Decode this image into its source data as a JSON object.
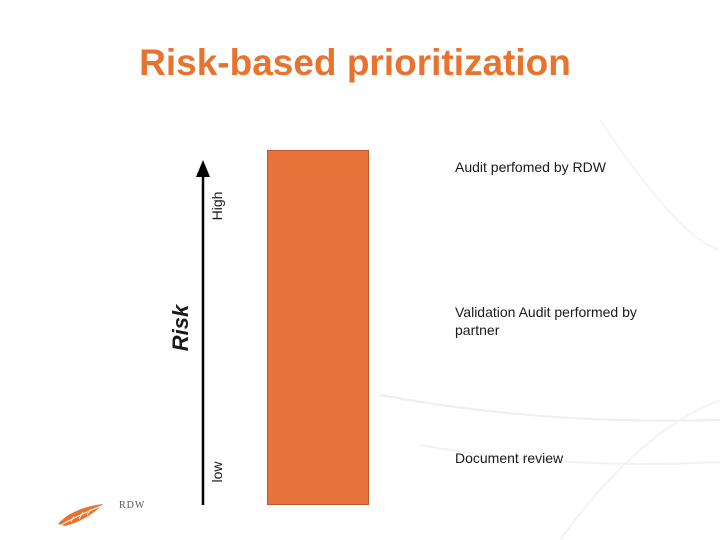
{
  "title": "Risk-based prioritization",
  "axis": {
    "label": "Risk",
    "high_label": "High",
    "low_label": "low"
  },
  "levels": [
    {
      "text": "Audit perfomed by RDW"
    },
    {
      "text": "Validation  Audit performed by partner"
    },
    {
      "text": "Document review"
    }
  ],
  "logo": {
    "text": "RDW",
    "icon": "rdw-leaf-logo-icon"
  },
  "colors": {
    "accent": "#e8732f",
    "bar": "#e8733a"
  }
}
